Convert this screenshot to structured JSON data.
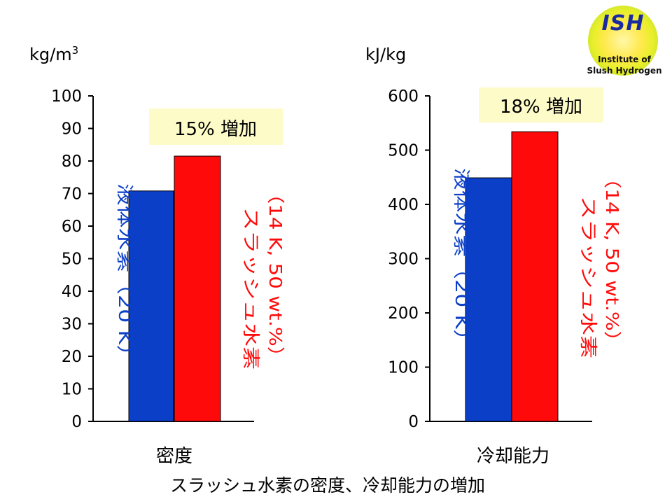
{
  "caption": "スラッシュ水素の密度、冷却能力の増加",
  "logo": {
    "abbr": "ISH",
    "line1": "Institute of",
    "line2": "Slush Hydrogen"
  },
  "colors": {
    "blue": "#0b3fc8",
    "red": "#ff0a0a",
    "callout_bg": "#fdfbc8",
    "axis": "#000000"
  },
  "chart_data": [
    {
      "type": "bar",
      "unit": "kg/m",
      "unit_sup": "3",
      "category": "密度",
      "ylim": [
        0,
        100
      ],
      "ticks": [
        0,
        10,
        20,
        30,
        40,
        50,
        60,
        70,
        80,
        90,
        100
      ],
      "annotation": "15% 増加",
      "series": [
        {
          "label": "液体水素（20 K）",
          "value": 70.8
        },
        {
          "label_line1": "スラッシュ水素",
          "label_line2": "（14 K, 50 wt.%）",
          "value": 81.5
        }
      ]
    },
    {
      "type": "bar",
      "unit": "kJ/kg",
      "category": "冷却能力",
      "ylim": [
        0,
        600
      ],
      "ticks": [
        0,
        100,
        200,
        300,
        400,
        500,
        600
      ],
      "annotation": "18% 増加",
      "series": [
        {
          "label": "液体水素（20 K）",
          "value": 449
        },
        {
          "label_line1": "スラッシュ水素",
          "label_line2": "（14 K, 50 wt.%）",
          "value": 534
        }
      ]
    }
  ]
}
